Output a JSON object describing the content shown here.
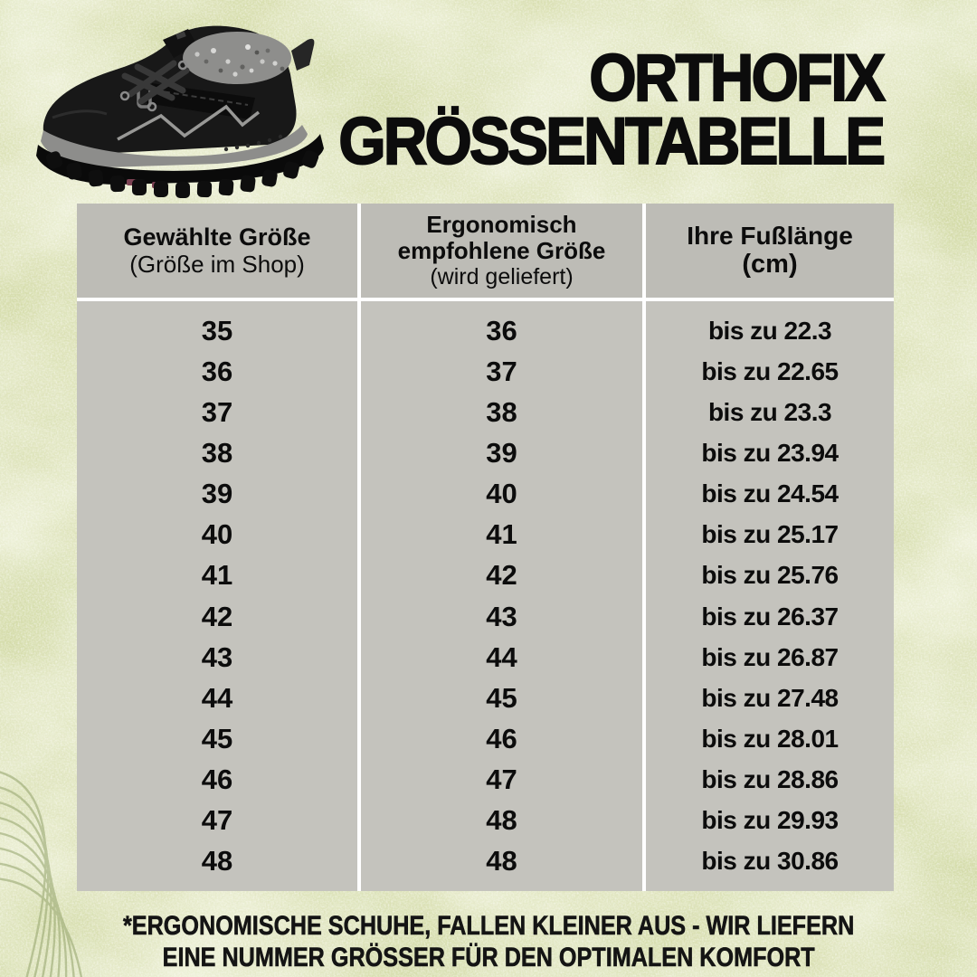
{
  "title": {
    "line1": "ORTHOFIX",
    "line2": "GRÖSSENTABELLE"
  },
  "product_image": {
    "description": "black winter boot with grey fur lining"
  },
  "table": {
    "columns": [
      {
        "title": "Gewählte Größe",
        "subtitle": "(Größe im Shop)"
      },
      {
        "title": "Ergonomisch empfohlene Größe",
        "subtitle": "(wird geliefert)"
      },
      {
        "title": "Ihre Fußlänge",
        "subtitle": "(cm)"
      }
    ],
    "rows": [
      {
        "shop": "35",
        "delivered": "36",
        "foot": "bis zu 22.3"
      },
      {
        "shop": "36",
        "delivered": "37",
        "foot": "bis zu 22.65"
      },
      {
        "shop": "37",
        "delivered": "38",
        "foot": "bis zu 23.3"
      },
      {
        "shop": "38",
        "delivered": "39",
        "foot": "bis zu 23.94"
      },
      {
        "shop": "39",
        "delivered": "40",
        "foot": "bis zu 24.54"
      },
      {
        "shop": "40",
        "delivered": "41",
        "foot": "bis zu 25.17"
      },
      {
        "shop": "41",
        "delivered": "42",
        "foot": "bis zu 25.76"
      },
      {
        "shop": "42",
        "delivered": "43",
        "foot": "bis zu 26.37"
      },
      {
        "shop": "43",
        "delivered": "44",
        "foot": "bis zu 26.87"
      },
      {
        "shop": "44",
        "delivered": "45",
        "foot": "bis zu 27.48"
      },
      {
        "shop": "45",
        "delivered": "46",
        "foot": "bis zu 28.01"
      },
      {
        "shop": "46",
        "delivered": "47",
        "foot": "bis zu 28.86"
      },
      {
        "shop": "47",
        "delivered": "48",
        "foot": "bis zu 29.93"
      },
      {
        "shop": "48",
        "delivered": "48",
        "foot": "bis zu 30.86"
      }
    ]
  },
  "footer": {
    "line1": "*ERGONOMISCHE SCHUHE, FALLEN KLEINER AUS - WIR LIEFERN",
    "line2": "EINE NUMMER GRÖSSER FÜR DEN OPTIMALEN KOMFORT"
  },
  "colors": {
    "background_green": "#d3daa6",
    "header_gray": "#bdbcb6",
    "body_gray": "#c4c3bd",
    "separator_white": "#ffffff",
    "text_black": "#0c0c0c"
  }
}
